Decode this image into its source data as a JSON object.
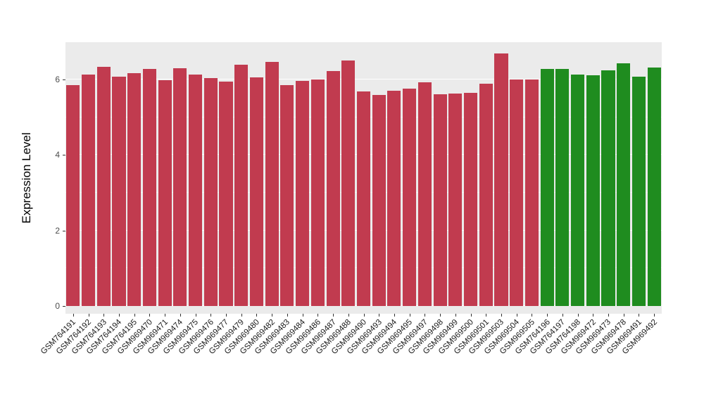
{
  "chart_data": {
    "type": "bar",
    "title": "",
    "xlabel": "",
    "ylabel": "Expression Level",
    "ylim": [
      0,
      6.98
    ],
    "yticks": [
      0,
      2,
      4,
      6
    ],
    "yticks_minor": [
      1,
      3,
      5
    ],
    "grid": true,
    "legend_position": "none",
    "panel_background": "#EBEBEB",
    "gridline_color": "#ffffff",
    "categories": [
      "GSM764191",
      "GSM764192",
      "GSM764193",
      "GSM764194",
      "GSM764195",
      "GSM969470",
      "GSM969471",
      "GSM969474",
      "GSM969475",
      "GSM969476",
      "GSM969477",
      "GSM969479",
      "GSM969480",
      "GSM969482",
      "GSM969483",
      "GSM969484",
      "GSM969486",
      "GSM969487",
      "GSM969488",
      "GSM969490",
      "GSM969493",
      "GSM969494",
      "GSM969495",
      "GSM969497",
      "GSM969498",
      "GSM969499",
      "GSM969500",
      "GSM969501",
      "GSM969503",
      "GSM969504",
      "GSM969505",
      "GSM764196",
      "GSM764197",
      "GSM764198",
      "GSM969472",
      "GSM969473",
      "GSM969478",
      "GSM969491",
      "GSM969492"
    ],
    "values": [
      5.84,
      6.12,
      6.34,
      6.08,
      6.16,
      6.28,
      5.98,
      6.3,
      6.12,
      6.04,
      5.94,
      6.38,
      6.06,
      6.47,
      5.84,
      5.96,
      6.0,
      6.22,
      6.5,
      5.68,
      5.58,
      5.7,
      5.76,
      5.93,
      5.6,
      5.62,
      5.64,
      5.88,
      6.68,
      5.99,
      5.99,
      6.28,
      6.28,
      6.12,
      6.1,
      6.24,
      6.42,
      6.08,
      6.31
    ],
    "groups": [
      "red",
      "red",
      "red",
      "red",
      "red",
      "red",
      "red",
      "red",
      "red",
      "red",
      "red",
      "red",
      "red",
      "red",
      "red",
      "red",
      "red",
      "red",
      "red",
      "red",
      "red",
      "red",
      "red",
      "red",
      "red",
      "red",
      "red",
      "red",
      "red",
      "red",
      "red",
      "green",
      "green",
      "green",
      "green",
      "green",
      "green",
      "green",
      "green"
    ],
    "group_colors": {
      "red": "#C13B4F",
      "green": "#1F8C1F"
    }
  }
}
